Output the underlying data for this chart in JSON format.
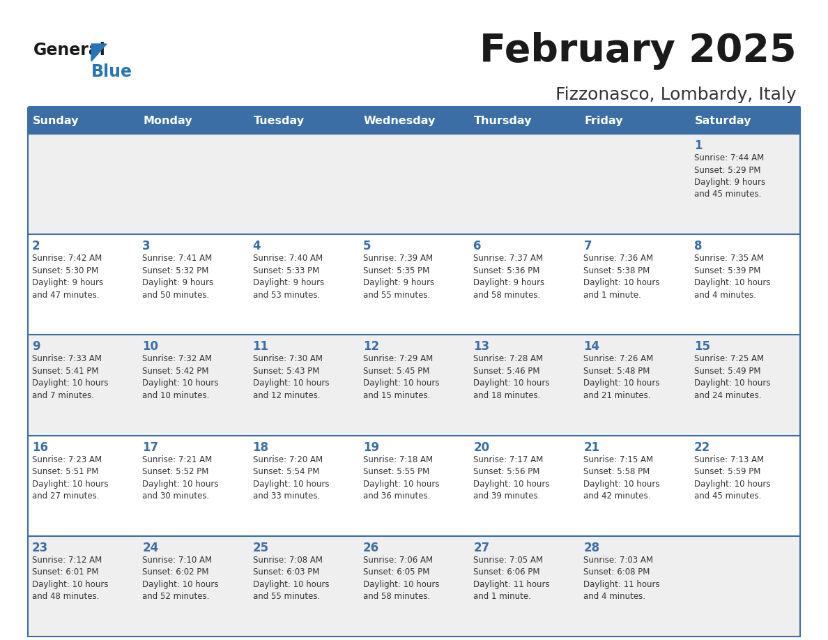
{
  "title": "February 2025",
  "subtitle": "Fizzonasco, Lombardy, Italy",
  "days_of_week": [
    "Sunday",
    "Monday",
    "Tuesday",
    "Wednesday",
    "Thursday",
    "Friday",
    "Saturday"
  ],
  "header_bg": "#3a6ea5",
  "header_text": "#ffffff",
  "cell_bg_light": "#efefef",
  "cell_bg_white": "#ffffff",
  "border_color": "#3a6ea5",
  "day_number_color": "#3a6ea5",
  "text_color": "#333333",
  "title_color": "#1a1a1a",
  "subtitle_color": "#333333",
  "logo_general_color": "#1a1a1a",
  "logo_blue_color": "#2575b7",
  "calendar_data": [
    [
      null,
      null,
      null,
      null,
      null,
      null,
      {
        "day": 1,
        "sunrise": "7:44 AM",
        "sunset": "5:29 PM",
        "daylight": "9 hours\nand 45 minutes."
      }
    ],
    [
      {
        "day": 2,
        "sunrise": "7:42 AM",
        "sunset": "5:30 PM",
        "daylight": "9 hours\nand 47 minutes."
      },
      {
        "day": 3,
        "sunrise": "7:41 AM",
        "sunset": "5:32 PM",
        "daylight": "9 hours\nand 50 minutes."
      },
      {
        "day": 4,
        "sunrise": "7:40 AM",
        "sunset": "5:33 PM",
        "daylight": "9 hours\nand 53 minutes."
      },
      {
        "day": 5,
        "sunrise": "7:39 AM",
        "sunset": "5:35 PM",
        "daylight": "9 hours\nand 55 minutes."
      },
      {
        "day": 6,
        "sunrise": "7:37 AM",
        "sunset": "5:36 PM",
        "daylight": "9 hours\nand 58 minutes."
      },
      {
        "day": 7,
        "sunrise": "7:36 AM",
        "sunset": "5:38 PM",
        "daylight": "10 hours\nand 1 minute."
      },
      {
        "day": 8,
        "sunrise": "7:35 AM",
        "sunset": "5:39 PM",
        "daylight": "10 hours\nand 4 minutes."
      }
    ],
    [
      {
        "day": 9,
        "sunrise": "7:33 AM",
        "sunset": "5:41 PM",
        "daylight": "10 hours\nand 7 minutes."
      },
      {
        "day": 10,
        "sunrise": "7:32 AM",
        "sunset": "5:42 PM",
        "daylight": "10 hours\nand 10 minutes."
      },
      {
        "day": 11,
        "sunrise": "7:30 AM",
        "sunset": "5:43 PM",
        "daylight": "10 hours\nand 12 minutes."
      },
      {
        "day": 12,
        "sunrise": "7:29 AM",
        "sunset": "5:45 PM",
        "daylight": "10 hours\nand 15 minutes."
      },
      {
        "day": 13,
        "sunrise": "7:28 AM",
        "sunset": "5:46 PM",
        "daylight": "10 hours\nand 18 minutes."
      },
      {
        "day": 14,
        "sunrise": "7:26 AM",
        "sunset": "5:48 PM",
        "daylight": "10 hours\nand 21 minutes."
      },
      {
        "day": 15,
        "sunrise": "7:25 AM",
        "sunset": "5:49 PM",
        "daylight": "10 hours\nand 24 minutes."
      }
    ],
    [
      {
        "day": 16,
        "sunrise": "7:23 AM",
        "sunset": "5:51 PM",
        "daylight": "10 hours\nand 27 minutes."
      },
      {
        "day": 17,
        "sunrise": "7:21 AM",
        "sunset": "5:52 PM",
        "daylight": "10 hours\nand 30 minutes."
      },
      {
        "day": 18,
        "sunrise": "7:20 AM",
        "sunset": "5:54 PM",
        "daylight": "10 hours\nand 33 minutes."
      },
      {
        "day": 19,
        "sunrise": "7:18 AM",
        "sunset": "5:55 PM",
        "daylight": "10 hours\nand 36 minutes."
      },
      {
        "day": 20,
        "sunrise": "7:17 AM",
        "sunset": "5:56 PM",
        "daylight": "10 hours\nand 39 minutes."
      },
      {
        "day": 21,
        "sunrise": "7:15 AM",
        "sunset": "5:58 PM",
        "daylight": "10 hours\nand 42 minutes."
      },
      {
        "day": 22,
        "sunrise": "7:13 AM",
        "sunset": "5:59 PM",
        "daylight": "10 hours\nand 45 minutes."
      }
    ],
    [
      {
        "day": 23,
        "sunrise": "7:12 AM",
        "sunset": "6:01 PM",
        "daylight": "10 hours\nand 48 minutes."
      },
      {
        "day": 24,
        "sunrise": "7:10 AM",
        "sunset": "6:02 PM",
        "daylight": "10 hours\nand 52 minutes."
      },
      {
        "day": 25,
        "sunrise": "7:08 AM",
        "sunset": "6:03 PM",
        "daylight": "10 hours\nand 55 minutes."
      },
      {
        "day": 26,
        "sunrise": "7:06 AM",
        "sunset": "6:05 PM",
        "daylight": "10 hours\nand 58 minutes."
      },
      {
        "day": 27,
        "sunrise": "7:05 AM",
        "sunset": "6:06 PM",
        "daylight": "11 hours\nand 1 minute."
      },
      {
        "day": 28,
        "sunrise": "7:03 AM",
        "sunset": "6:08 PM",
        "daylight": "11 hours\nand 4 minutes."
      },
      null
    ]
  ]
}
